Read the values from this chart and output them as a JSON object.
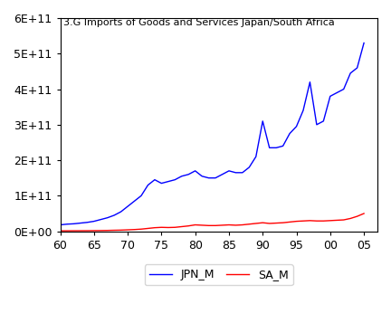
{
  "title": "3.G Imports of Goods and Services Japan/South Africa",
  "legend_labels": [
    "JPN_M",
    "SA_M"
  ],
  "line_colors": [
    "blue",
    "red"
  ],
  "x_ticks": [
    60,
    65,
    70,
    75,
    80,
    85,
    90,
    95,
    100,
    105
  ],
  "x_tick_labels": [
    "60",
    "65",
    "70",
    "75",
    "80",
    "85",
    "90",
    "95",
    "00",
    "05"
  ],
  "y_ticks": [
    0,
    100000000000.0,
    200000000000.0,
    300000000000.0,
    400000000000.0,
    500000000000.0,
    600000000000.0
  ],
  "y_tick_labels": [
    "0E+00",
    "1E+11",
    "2E+11",
    "3E+11",
    "4E+11",
    "5E+11",
    "6E+11"
  ],
  "xlim": [
    60,
    107
  ],
  "ylim": [
    0,
    600000000000.0
  ],
  "JPN_M_x": [
    60,
    61,
    62,
    63,
    64,
    65,
    66,
    67,
    68,
    69,
    70,
    71,
    72,
    73,
    74,
    75,
    76,
    77,
    78,
    79,
    80,
    81,
    82,
    83,
    84,
    85,
    86,
    87,
    88,
    89,
    90,
    91,
    92,
    93,
    94,
    95,
    96,
    97,
    98,
    99,
    100,
    101,
    102,
    103,
    104,
    105
  ],
  "JPN_M_y": [
    18000000000.0,
    20000000000.0,
    21000000000.0,
    23000000000.0,
    25000000000.0,
    28000000000.0,
    33000000000.0,
    38000000000.0,
    45000000000.0,
    55000000000.0,
    70000000000.0,
    85000000000.0,
    100000000000.0,
    130000000000.0,
    145000000000.0,
    135000000000.0,
    140000000000.0,
    145000000000.0,
    155000000000.0,
    160000000000.0,
    170000000000.0,
    155000000000.0,
    150000000000.0,
    150000000000.0,
    160000000000.0,
    170000000000.0,
    165000000000.0,
    165000000000.0,
    180000000000.0,
    210000000000.0,
    310000000000.0,
    235000000000.0,
    235000000000.0,
    240000000000.0,
    275000000000.0,
    295000000000.0,
    340000000000.0,
    420000000000.0,
    300000000000.0,
    310000000000.0,
    380000000000.0,
    390000000000.0,
    400000000000.0,
    445000000000.0,
    460000000000.0,
    530000000000.0
  ],
  "SA_M_x": [
    60,
    61,
    62,
    63,
    64,
    65,
    66,
    67,
    68,
    69,
    70,
    71,
    72,
    73,
    74,
    75,
    76,
    77,
    78,
    79,
    80,
    81,
    82,
    83,
    84,
    85,
    86,
    87,
    88,
    89,
    90,
    91,
    92,
    93,
    94,
    95,
    96,
    97,
    98,
    99,
    100,
    101,
    102,
    103,
    104,
    105
  ],
  "SA_M_y": [
    1200000000.0,
    1300000000.0,
    1400000000.0,
    1500000000.0,
    1600000000.0,
    1800000000.0,
    2000000000.0,
    2300000000.0,
    2800000000.0,
    3200000000.0,
    4000000000.0,
    4800000000.0,
    6000000000.0,
    8000000000.0,
    10000000000.0,
    11000000000.0,
    10500000000.0,
    11000000000.0,
    13000000000.0,
    15000000000.0,
    18000000000.0,
    17000000000.0,
    16000000000.0,
    16000000000.0,
    17000000000.0,
    18000000000.0,
    17000000000.0,
    18000000000.0,
    20000000000.0,
    22000000000.0,
    24000000000.0,
    22000000000.0,
    23000000000.0,
    24000000000.0,
    26000000000.0,
    28000000000.0,
    29000000000.0,
    30000000000.0,
    29000000000.0,
    29000000000.0,
    30000000000.0,
    31000000000.0,
    32000000000.0,
    36000000000.0,
    42000000000.0,
    50000000000.0
  ]
}
